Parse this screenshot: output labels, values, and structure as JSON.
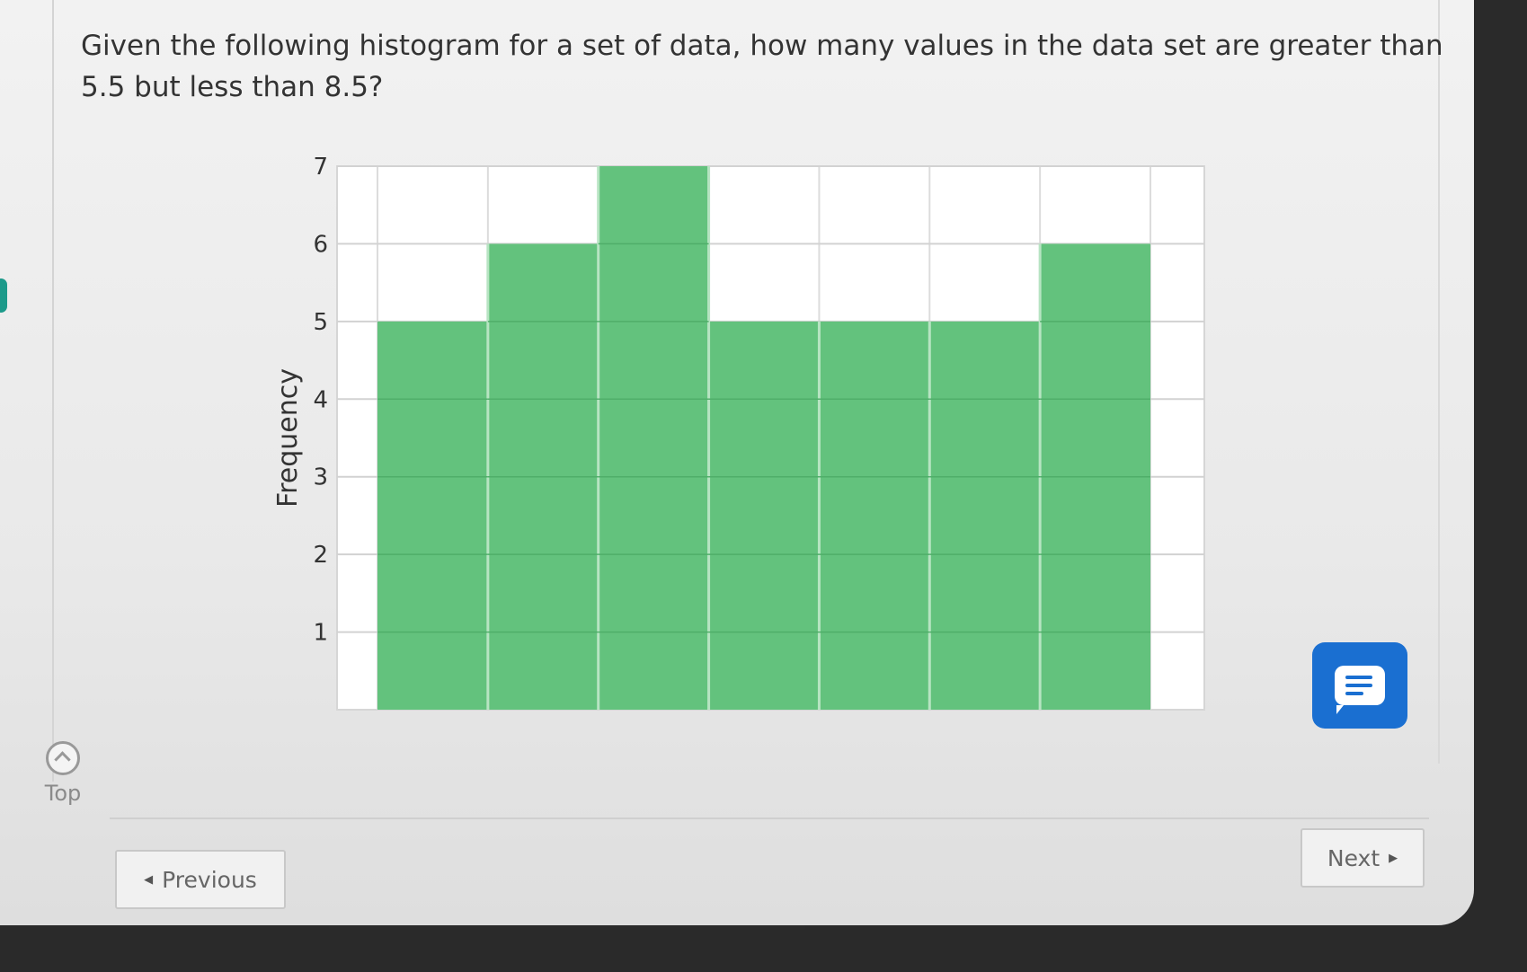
{
  "question": {
    "text": "Given the following histogram for a set of data, how many values in the data set are greater than 5.5 but less than 8.5?"
  },
  "navigation": {
    "top_label": "Top",
    "previous_label": "Previous",
    "next_label": "Next"
  },
  "icons": {
    "top": "chevron-up-circle-icon",
    "chat": "chat-bubble-icon",
    "prev_arrow": "triangle-left-icon",
    "next_arrow": "triangle-right-icon"
  },
  "colors": {
    "bar": "#63c27d",
    "bar_divider": "#b7e4c2",
    "chat_button": "#1a6fd1"
  },
  "chart_data": {
    "type": "bar",
    "title": "",
    "xlabel": "",
    "ylabel": "Frequency",
    "values": [
      5,
      6,
      7,
      5,
      5,
      5,
      6
    ],
    "yticks": [
      1,
      2,
      3,
      4,
      5,
      6,
      7
    ],
    "ylim": [
      0,
      7
    ],
    "grid": true,
    "xtick_labels_visible": false
  }
}
